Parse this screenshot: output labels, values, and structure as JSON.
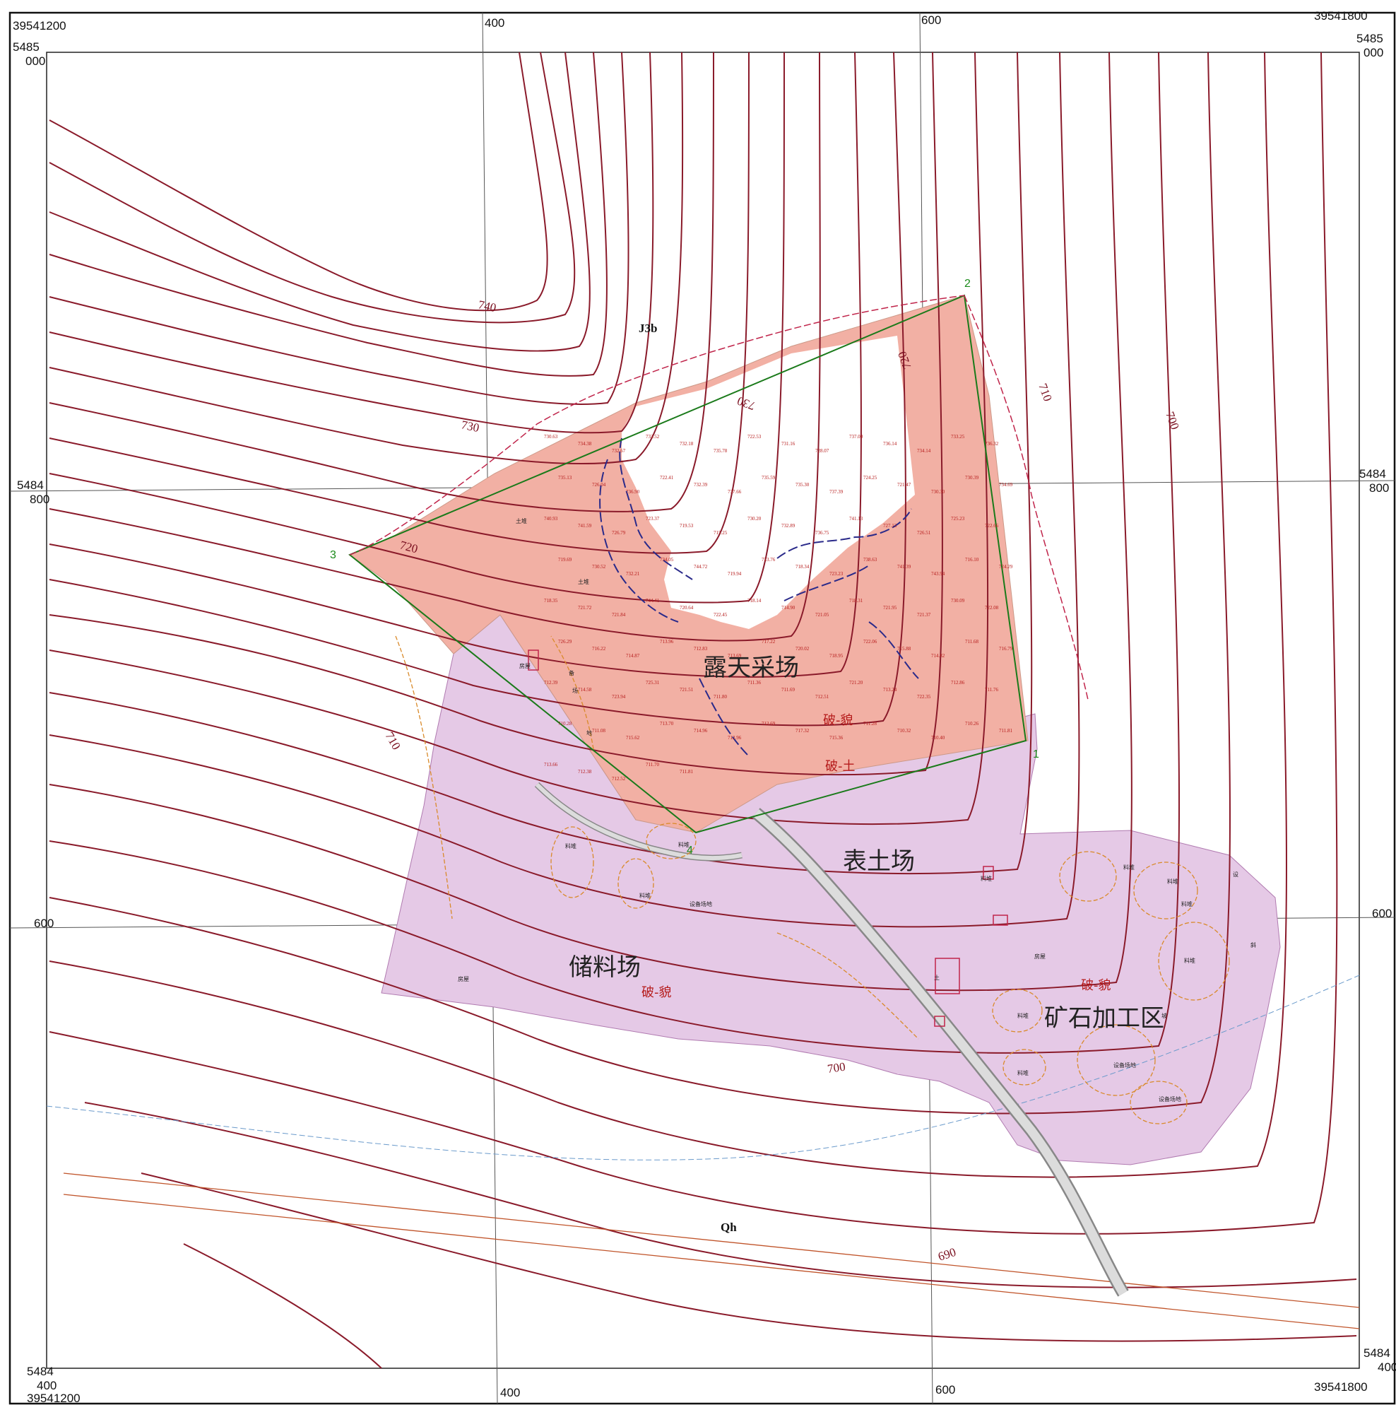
{
  "map": {
    "corners": {
      "tl_x": "39541200",
      "tl_y1": "5485",
      "tl_y2": "000",
      "tr_x": "39541800",
      "tr_y1": "5485",
      "tr_y2": "000",
      "bl_x": "39541200",
      "bl_y1": "5484",
      "bl_y2": "400",
      "br_x": "39541800",
      "br_y1": "5484",
      "br_y2": "400"
    },
    "grid_ticks": {
      "top_400": "400",
      "top_600": "600",
      "bottom_400": "400",
      "bottom_600": "600",
      "left_800_a": "5484",
      "left_800_b": "800",
      "right_800_a": "5484",
      "right_800_b": "800",
      "left_600": "600",
      "right_600": "600"
    },
    "zones": {
      "pit": "露天采场",
      "topsoil": "表土场",
      "storage": "储料场",
      "processing": "矿石加工区"
    },
    "damage_labels": {
      "pit_1": "破-貌",
      "pit_2": "破-土",
      "storage": "破-貌",
      "processing": "破-貌"
    },
    "contour_labels": [
      "740",
      "730",
      "720",
      "710",
      "730",
      "720",
      "710",
      "700",
      "700",
      "690"
    ],
    "geology": {
      "upper": "J3b",
      "lower": "Qh"
    },
    "vertices": [
      "1",
      "2",
      "3",
      "4"
    ],
    "small_labels": [
      "土堆",
      "土堆",
      "料堆",
      "料堆",
      "料堆",
      "料堆",
      "料堆",
      "料堆",
      "料堆",
      "料堆",
      "料堆",
      "料堆",
      "设备场地",
      "设备场地",
      "设备场地",
      "房屋",
      "房屋",
      "房屋",
      "土",
      "坡",
      "斜",
      "设",
      "备",
      "场",
      "地"
    ],
    "spot_heights": [
      "730.63",
      "734.38",
      "732.67",
      "733.52",
      "732.18",
      "735.78",
      "722.53",
      "731.16",
      "728.07",
      "737.00",
      "736.14",
      "734.14",
      "733.25",
      "736.32",
      "735.13",
      "726.04",
      "736.90",
      "722.41",
      "732.39",
      "737.66",
      "735.59",
      "735.30",
      "737.39",
      "724.25",
      "721.47",
      "730.30",
      "730.39",
      "734.69",
      "740.93",
      "741.59",
      "726.79",
      "723.37",
      "719.53",
      "715.25",
      "730.20",
      "732.89",
      "736.75",
      "741.13",
      "727.13",
      "726.51",
      "725.23",
      "722.66",
      "719.69",
      "730.52",
      "732.21",
      "734.05",
      "744.72",
      "719.94",
      "723.76",
      "718.34",
      "723.23",
      "738.63",
      "741.39",
      "743.94",
      "716.10",
      "724.29",
      "718.35",
      "721.72",
      "721.84",
      "744.41",
      "720.64",
      "722.45",
      "718.14",
      "714.90",
      "721.05",
      "718.31",
      "721.95",
      "721.37",
      "730.09",
      "722.08",
      "726.29",
      "716.22",
      "714.87",
      "713.96",
      "712.83",
      "713.69",
      "717.22",
      "720.02",
      "718.95",
      "722.06",
      "715.88",
      "714.82",
      "711.68",
      "716.79",
      "712.39",
      "714.58",
      "723.94",
      "725.31",
      "721.51",
      "711.80",
      "711.36",
      "711.69",
      "712.51",
      "721.20",
      "713.24",
      "722.35",
      "712.86",
      "711.76",
      "710.28",
      "711.08",
      "715.62",
      "713.70",
      "714.96",
      "712.96",
      "712.69",
      "717.32",
      "715.36",
      "711.28",
      "710.32",
      "710.40",
      "710.26",
      "711.81",
      "713.66",
      "712.38",
      "712.52",
      "711.70",
      "711.81"
    ]
  }
}
